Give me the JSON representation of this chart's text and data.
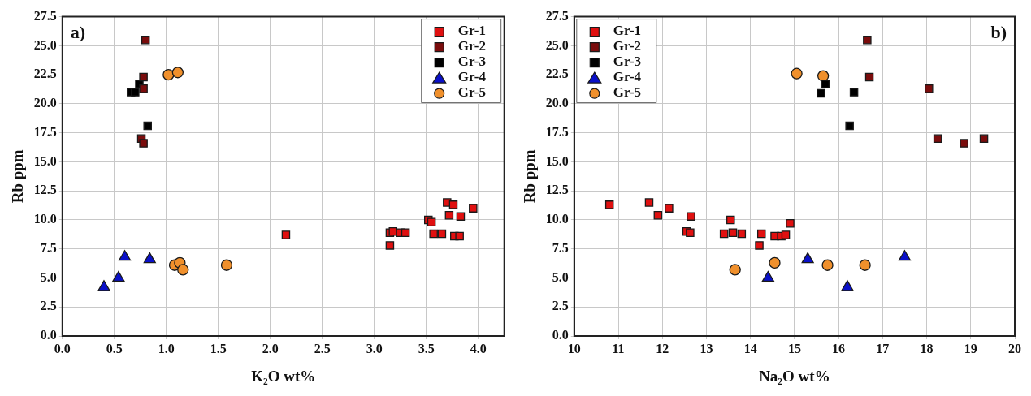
{
  "chart_data": [
    {
      "type": "scatter",
      "xlabel": "K₂O wt%",
      "ylabel": "Rb ppm",
      "annotations": [
        "a)"
      ],
      "xlim": [
        0,
        4.25
      ],
      "xticks": [
        {
          "value": 0,
          "label": "0.0"
        },
        0.5,
        {
          "value": 1,
          "label": "1.0"
        },
        1.5,
        {
          "value": 2,
          "label": "2.0"
        },
        2.5,
        {
          "value": 3,
          "label": "3.0"
        },
        3.5,
        {
          "value": 4,
          "label": "4.0"
        }
      ],
      "ylim": [
        0,
        27.5
      ],
      "yticks": [
        {
          "value": 0,
          "label": "0.0"
        },
        2.5,
        {
          "value": 5,
          "label": "5.0"
        },
        7.5,
        {
          "value": 10,
          "label": "10.0"
        },
        12.5,
        {
          "value": 15,
          "label": "15.0"
        },
        17.5,
        {
          "value": 20,
          "label": "20.0"
        },
        22.5,
        {
          "value": 25,
          "label": "25.0"
        },
        27.5
      ],
      "grid": true,
      "legend": "top right",
      "series": [
        {
          "name": "Gr-1",
          "color": "#e01010",
          "marker": "square",
          "x": [
            2.15,
            3.15,
            3.15,
            3.18,
            3.25,
            3.3,
            3.52,
            3.55,
            3.57,
            3.65,
            3.7,
            3.76,
            3.72,
            3.83,
            3.77,
            3.82,
            3.95
          ],
          "values": [
            8.7,
            7.8,
            8.9,
            9.0,
            8.9,
            8.9,
            10.0,
            9.8,
            8.8,
            8.8,
            11.5,
            11.3,
            10.4,
            10.3,
            8.6,
            8.6,
            11.0
          ]
        },
        {
          "name": "Gr-2",
          "color": "#7a0c0c",
          "marker": "square",
          "x": [
            0.8,
            0.78,
            0.78,
            0.76,
            0.78
          ],
          "values": [
            25.5,
            22.3,
            21.3,
            17.0,
            16.6
          ]
        },
        {
          "name": "Gr-3",
          "color": "#000000",
          "marker": "square",
          "x": [
            0.66,
            0.7,
            0.74,
            0.82
          ],
          "values": [
            21.0,
            21.0,
            21.7,
            18.1
          ]
        },
        {
          "name": "Gr-4",
          "color": "#0a10c8",
          "marker": "triangle",
          "x": [
            0.4,
            0.54,
            0.6,
            0.84
          ],
          "values": [
            4.2,
            5.0,
            6.8,
            6.6
          ]
        },
        {
          "name": "Gr-5",
          "color": "#f0902c",
          "marker": "circle",
          "x": [
            1.02,
            1.11,
            1.08,
            1.13,
            1.16,
            1.58
          ],
          "values": [
            22.5,
            22.7,
            6.1,
            6.3,
            5.7,
            6.1
          ]
        }
      ]
    },
    {
      "type": "scatter",
      "xlabel": "Na₂O wt%",
      "ylabel": "Rb ppm",
      "annotations": [
        "b)"
      ],
      "xlim": [
        10,
        20
      ],
      "xticks": [
        10,
        11,
        12,
        13,
        14,
        15,
        16,
        17,
        18,
        19,
        20
      ],
      "ylim": [
        0,
        27.5
      ],
      "yticks": [
        {
          "value": 0,
          "label": "0.0"
        },
        2.5,
        {
          "value": 5,
          "label": "5.0"
        },
        7.5,
        {
          "value": 10,
          "label": "10.0"
        },
        12.5,
        {
          "value": 15,
          "label": "15.0"
        },
        17.5,
        {
          "value": 20,
          "label": "20.0"
        },
        22.5,
        {
          "value": 25,
          "label": "25.0"
        },
        27.5
      ],
      "grid": true,
      "legend": "top left",
      "series": [
        {
          "name": "Gr-1",
          "color": "#e01010",
          "marker": "square",
          "x": [
            10.8,
            11.7,
            11.9,
            12.15,
            12.55,
            12.65,
            12.63,
            13.4,
            13.55,
            13.6,
            13.8,
            14.25,
            14.2,
            14.55,
            14.7,
            14.8,
            14.9
          ],
          "values": [
            11.3,
            11.5,
            10.4,
            11.0,
            9.0,
            10.3,
            8.9,
            8.8,
            10.0,
            8.9,
            8.8,
            8.8,
            7.8,
            8.6,
            8.6,
            8.7,
            9.7
          ]
        },
        {
          "name": "Gr-2",
          "color": "#7a0c0c",
          "marker": "square",
          "x": [
            16.65,
            16.7,
            18.05,
            18.25,
            18.85,
            19.3
          ],
          "values": [
            25.5,
            22.3,
            21.3,
            17.0,
            16.6,
            17.0
          ]
        },
        {
          "name": "Gr-3",
          "color": "#000000",
          "marker": "square",
          "x": [
            15.6,
            15.7,
            16.35,
            16.25
          ],
          "values": [
            20.9,
            21.7,
            21.0,
            18.1
          ]
        },
        {
          "name": "Gr-4",
          "color": "#0a10c8",
          "marker": "triangle",
          "x": [
            14.4,
            15.3,
            16.2,
            17.5
          ],
          "values": [
            5.0,
            6.6,
            4.2,
            6.8
          ]
        },
        {
          "name": "Gr-5",
          "color": "#f0902c",
          "marker": "circle",
          "x": [
            15.05,
            15.65,
            13.65,
            14.55,
            15.75,
            16.6
          ],
          "values": [
            22.6,
            22.4,
            5.7,
            6.3,
            6.1,
            6.1
          ]
        }
      ]
    }
  ]
}
